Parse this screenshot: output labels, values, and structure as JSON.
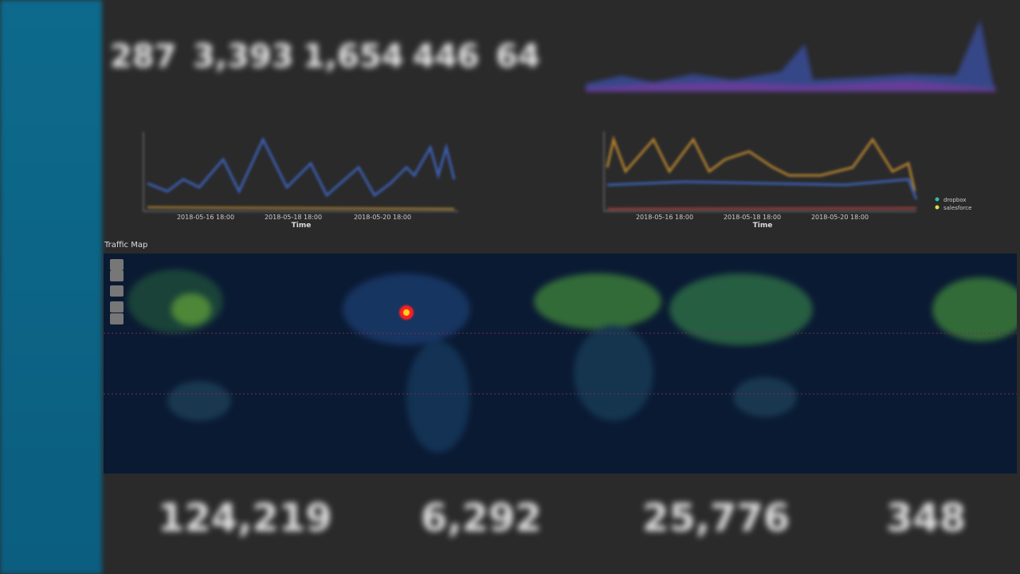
{
  "metrics_top": [
    "287",
    "3,393",
    "1,654",
    "446",
    "64"
  ],
  "left_chart": {
    "x_label": "Time",
    "x_ticks": [
      "2018-05-16 18:00",
      "2018-05-18 18:00",
      "2018-05-20 18:00"
    ]
  },
  "right_chart": {
    "x_label": "Time",
    "x_ticks": [
      "2018-05-16 18:00",
      "2018-05-18 18:00",
      "2018-05-20 18:00"
    ],
    "legend": [
      "dropbox",
      "salesforce"
    ]
  },
  "map": {
    "title": "Traffic Map"
  },
  "metrics_bottom": [
    "124,219",
    "6,292",
    "25,776",
    "348"
  ]
}
